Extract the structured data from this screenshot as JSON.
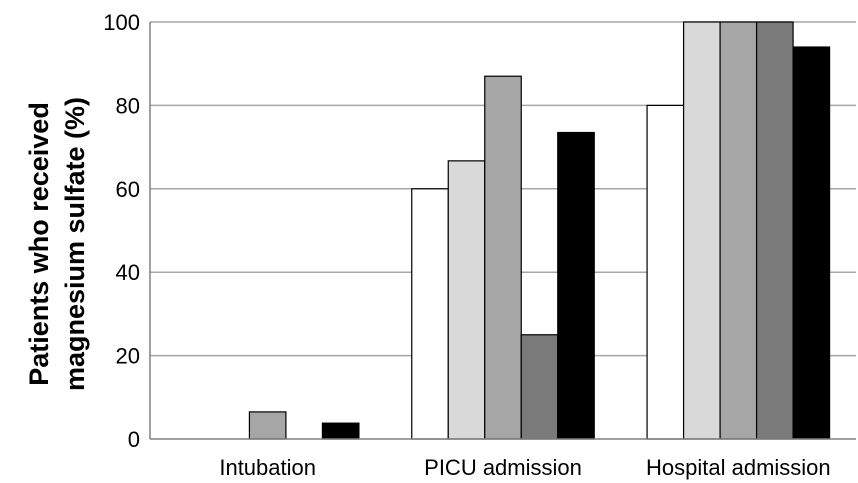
{
  "chart_data": {
    "type": "bar",
    "categories": [
      "Intubation",
      "PICU admission",
      "Hospital admission"
    ],
    "series": [
      {
        "color": "#ffffff",
        "values": [
          0,
          60,
          80
        ]
      },
      {
        "color": "#d9d9d9",
        "values": [
          0,
          66.7,
          100
        ]
      },
      {
        "color": "#a6a6a6",
        "values": [
          6.5,
          87,
          100
        ]
      },
      {
        "color": "#7a7a7a",
        "values": [
          0,
          25,
          100
        ]
      },
      {
        "color": "#000000",
        "values": [
          3.8,
          73.5,
          94
        ]
      }
    ],
    "ylabel_line1": "Patients who received",
    "ylabel_line2": "magnesium sulfate (%)",
    "ylim": [
      0,
      100
    ],
    "yticks": [
      0,
      20,
      40,
      60,
      80,
      100
    ],
    "grid": true,
    "legend": "none"
  }
}
